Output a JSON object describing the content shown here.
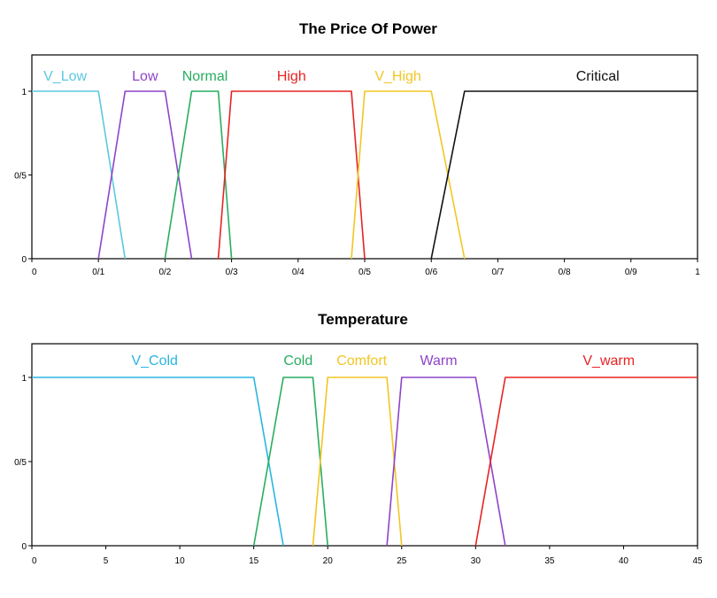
{
  "chart_data": [
    {
      "type": "line",
      "title": "The Price Of Power",
      "xlim": [
        0,
        1
      ],
      "ylim": [
        0,
        1
      ],
      "x_ticks": [
        {
          "value": 0,
          "label": "0"
        },
        {
          "value": 0.1,
          "label": "0/1"
        },
        {
          "value": 0.2,
          "label": "0/2"
        },
        {
          "value": 0.3,
          "label": "0/3"
        },
        {
          "value": 0.4,
          "label": "0/4"
        },
        {
          "value": 0.5,
          "label": "0/5"
        },
        {
          "value": 0.6,
          "label": "0/6"
        },
        {
          "value": 0.7,
          "label": "0/7"
        },
        {
          "value": 0.8,
          "label": "0/8"
        },
        {
          "value": 0.9,
          "label": "0/9"
        },
        {
          "value": 1,
          "label": "1"
        }
      ],
      "y_ticks": [
        {
          "value": 0,
          "label": "0"
        },
        {
          "value": 0.5,
          "label": "0/5"
        },
        {
          "value": 1,
          "label": "1"
        }
      ],
      "series": [
        {
          "name": "V_Low",
          "color": "#5bc8e0",
          "label_x": 0.05,
          "points": [
            [
              0,
              1
            ],
            [
              0.1,
              1
            ],
            [
              0.14,
              0
            ]
          ]
        },
        {
          "name": "Low",
          "color": "#8e44c9",
          "label_x": 0.17,
          "points": [
            [
              0.1,
              0
            ],
            [
              0.14,
              1
            ],
            [
              0.2,
              1
            ],
            [
              0.24,
              0
            ]
          ]
        },
        {
          "name": "Normal",
          "color": "#27ae60",
          "label_x": 0.26,
          "points": [
            [
              0.2,
              0
            ],
            [
              0.24,
              1
            ],
            [
              0.28,
              1
            ],
            [
              0.3,
              0
            ]
          ]
        },
        {
          "name": "High",
          "color": "#e82323",
          "label_x": 0.39,
          "points": [
            [
              0.28,
              0
            ],
            [
              0.3,
              1
            ],
            [
              0.48,
              1
            ],
            [
              0.5,
              0
            ]
          ]
        },
        {
          "name": "V_High",
          "color": "#f2c623",
          "label_x": 0.55,
          "points": [
            [
              0.48,
              0
            ],
            [
              0.5,
              1
            ],
            [
              0.6,
              1
            ],
            [
              0.65,
              0
            ]
          ]
        },
        {
          "name": "Critical",
          "color": "#111111",
          "label_x": 0.85,
          "points": [
            [
              0.6,
              0
            ],
            [
              0.65,
              1
            ],
            [
              1,
              1
            ]
          ]
        }
      ]
    },
    {
      "type": "line",
      "title": "Temperature",
      "xlim": [
        0,
        45
      ],
      "ylim": [
        0,
        1
      ],
      "x_ticks": [
        {
          "value": 0,
          "label": "0"
        },
        {
          "value": 5,
          "label": "5"
        },
        {
          "value": 10,
          "label": "10"
        },
        {
          "value": 15,
          "label": "15"
        },
        {
          "value": 20,
          "label": "20"
        },
        {
          "value": 25,
          "label": "25"
        },
        {
          "value": 30,
          "label": "30"
        },
        {
          "value": 35,
          "label": "35"
        },
        {
          "value": 40,
          "label": "40"
        },
        {
          "value": 45,
          "label": "45"
        }
      ],
      "y_ticks": [
        {
          "value": 0,
          "label": "0"
        },
        {
          "value": 0.5,
          "label": "0/5"
        },
        {
          "value": 1,
          "label": "1"
        }
      ],
      "series": [
        {
          "name": "V_Cold",
          "color": "#29b6e0",
          "label_x": 8.3,
          "points": [
            [
              0,
              1
            ],
            [
              15,
              1
            ],
            [
              17,
              0
            ]
          ]
        },
        {
          "name": "Cold",
          "color": "#27ae60",
          "label_x": 18,
          "points": [
            [
              15,
              0
            ],
            [
              17,
              1
            ],
            [
              19,
              1
            ],
            [
              20,
              0
            ]
          ]
        },
        {
          "name": "Comfort",
          "color": "#f2c623",
          "label_x": 22.3,
          "points": [
            [
              19,
              0
            ],
            [
              20,
              1
            ],
            [
              24,
              1
            ],
            [
              25,
              0
            ]
          ]
        },
        {
          "name": "Warm",
          "color": "#8e44c9",
          "label_x": 27.5,
          "points": [
            [
              24,
              0
            ],
            [
              25,
              1
            ],
            [
              30,
              1
            ],
            [
              32,
              0
            ]
          ]
        },
        {
          "name": "V_warm",
          "color": "#e82323",
          "label_x": 39,
          "points": [
            [
              30,
              0
            ],
            [
              32,
              1
            ],
            [
              45,
              1
            ]
          ]
        }
      ]
    }
  ]
}
